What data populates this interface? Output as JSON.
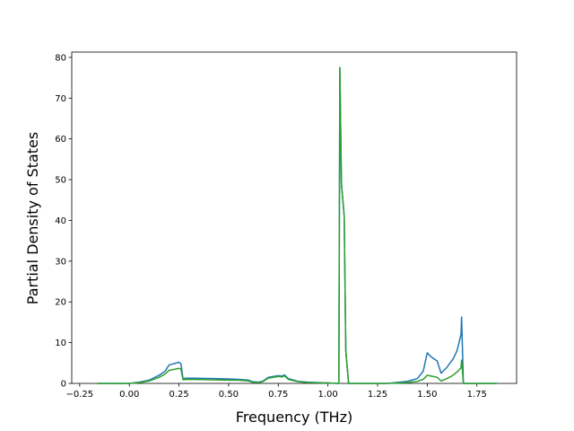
{
  "chart_data": {
    "type": "line",
    "xlabel": "Frequency (THz)",
    "ylabel": "Partial Density of States",
    "x": [
      -0.16,
      0,
      0.05,
      0.1,
      0.15,
      0.18,
      0.2,
      0.25,
      0.26,
      0.27,
      0.3,
      0.4,
      0.5,
      0.55,
      0.6,
      0.62,
      0.65,
      0.67,
      0.7,
      0.75,
      0.77,
      0.78,
      0.8,
      0.85,
      0.9,
      1.0,
      1.05,
      1.055,
      1.06,
      1.068,
      1.082,
      1.09,
      1.104,
      1.2,
      1.3,
      1.4,
      1.45,
      1.48,
      1.5,
      1.52,
      1.55,
      1.57,
      1.6,
      1.63,
      1.65,
      1.67,
      1.673,
      1.682,
      1.7,
      1.8,
      1.85
    ],
    "series": [
      {
        "color": "#1f77b4",
        "values": [
          0,
          0,
          0.3,
          0.8,
          2,
          3,
          4.5,
          5.2,
          4.8,
          1.2,
          1.3,
          1.2,
          1.1,
          1.0,
          0.8,
          0.4,
          0.3,
          0.5,
          1.5,
          1.9,
          1.8,
          2.1,
          1.2,
          0.5,
          0.3,
          0.1,
          0,
          0,
          77.5,
          49,
          41,
          8,
          0,
          0,
          0,
          0.5,
          1.2,
          3,
          7.5,
          6.5,
          5.5,
          2.5,
          4,
          6,
          8,
          12,
          16.3,
          0,
          0,
          0,
          0
        ]
      },
      {
        "color": "#2ca02c",
        "values": [
          0,
          0,
          0.2,
          0.6,
          1.5,
          2.3,
          3.2,
          3.7,
          3.5,
          0.9,
          1.0,
          0.9,
          0.8,
          0.8,
          0.6,
          0.3,
          0.2,
          0.4,
          1.3,
          1.7,
          1.6,
          1.9,
          1.0,
          0.4,
          0.2,
          0.1,
          0,
          0,
          77.5,
          49,
          41,
          8,
          0,
          0,
          0,
          0.2,
          0.5,
          1,
          2,
          1.8,
          1.5,
          0.6,
          1.2,
          2,
          2.8,
          3.8,
          5.7,
          0,
          0,
          0,
          0
        ]
      }
    ],
    "xlim": [
      -0.29,
      1.95
    ],
    "ylim": [
      0,
      81.3
    ],
    "xticks": [
      {
        "value": -0.25,
        "label": "−0.25"
      },
      {
        "value": 0,
        "label": "0.00"
      },
      0.25,
      {
        "value": 0.5,
        "label": "0.50"
      },
      0.75,
      {
        "value": 1,
        "label": "1.00"
      },
      1.25,
      {
        "value": 1.5,
        "label": "1.50"
      },
      1.75
    ],
    "yticks": [
      0,
      10,
      20,
      30,
      40,
      50,
      60,
      70,
      80
    ]
  }
}
